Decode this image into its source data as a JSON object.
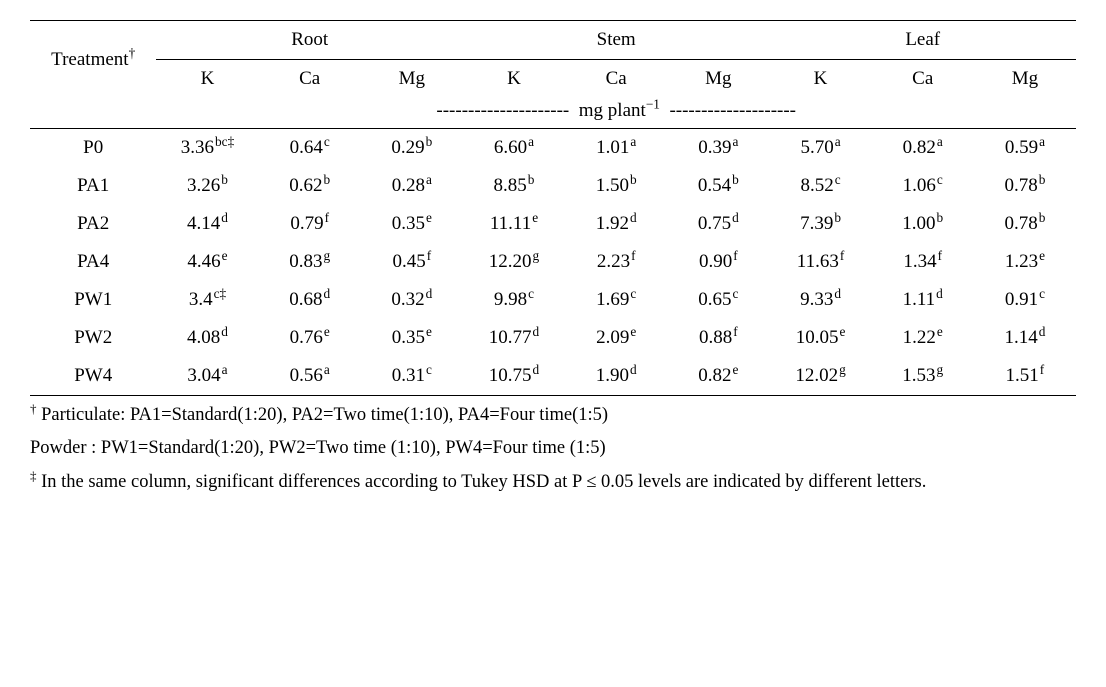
{
  "table": {
    "groups": [
      "Root",
      "Stem",
      "Leaf"
    ],
    "treatment_header": "Treatment",
    "treatment_dagger": "†",
    "subcols": [
      "K",
      "Ca",
      "Mg"
    ],
    "unit_prefix_dashes": "---------------------",
    "unit_label_before": "mg plant",
    "unit_sup": "−1",
    "unit_suffix_dashes": "--------------------",
    "rows": [
      {
        "treatment": "P0",
        "cells": [
          {
            "v": "3.36",
            "s": "bc‡"
          },
          {
            "v": "0.64",
            "s": "c"
          },
          {
            "v": "0.29",
            "s": "b"
          },
          {
            "v": "6.60",
            "s": "a"
          },
          {
            "v": "1.01",
            "s": "a"
          },
          {
            "v": "0.39",
            "s": "a"
          },
          {
            "v": "5.70",
            "s": "a"
          },
          {
            "v": "0.82",
            "s": "a"
          },
          {
            "v": "0.59",
            "s": "a"
          }
        ]
      },
      {
        "treatment": "PA1",
        "cells": [
          {
            "v": "3.26",
            "s": "b"
          },
          {
            "v": "0.62",
            "s": "b"
          },
          {
            "v": "0.28",
            "s": "a"
          },
          {
            "v": "8.85",
            "s": "b"
          },
          {
            "v": "1.50",
            "s": "b"
          },
          {
            "v": "0.54",
            "s": "b"
          },
          {
            "v": "8.52",
            "s": "c"
          },
          {
            "v": "1.06",
            "s": "c"
          },
          {
            "v": "0.78",
            "s": "b"
          }
        ]
      },
      {
        "treatment": "PA2",
        "cells": [
          {
            "v": "4.14",
            "s": "d"
          },
          {
            "v": "0.79",
            "s": "f"
          },
          {
            "v": "0.35",
            "s": "e"
          },
          {
            "v": "11.11",
            "s": "e"
          },
          {
            "v": "1.92",
            "s": "d"
          },
          {
            "v": "0.75",
            "s": "d"
          },
          {
            "v": "7.39",
            "s": "b"
          },
          {
            "v": "1.00",
            "s": "b"
          },
          {
            "v": "0.78",
            "s": "b"
          }
        ]
      },
      {
        "treatment": "PA4",
        "cells": [
          {
            "v": "4.46",
            "s": "e"
          },
          {
            "v": "0.83",
            "s": "g"
          },
          {
            "v": "0.45",
            "s": "f"
          },
          {
            "v": "12.20",
            "s": "g"
          },
          {
            "v": "2.23",
            "s": "f"
          },
          {
            "v": "0.90",
            "s": "f"
          },
          {
            "v": "11.63",
            "s": "f"
          },
          {
            "v": "1.34",
            "s": "f"
          },
          {
            "v": "1.23",
            "s": "e"
          }
        ]
      },
      {
        "treatment": "PW1",
        "cells": [
          {
            "v": "3.4",
            "s": "c‡"
          },
          {
            "v": "0.68",
            "s": "d"
          },
          {
            "v": "0.32",
            "s": "d"
          },
          {
            "v": "9.98",
            "s": "c"
          },
          {
            "v": "1.69",
            "s": "c"
          },
          {
            "v": "0.65",
            "s": "c"
          },
          {
            "v": "9.33",
            "s": "d"
          },
          {
            "v": "1.11",
            "s": "d"
          },
          {
            "v": "0.91",
            "s": "c"
          }
        ]
      },
      {
        "treatment": "PW2",
        "cells": [
          {
            "v": "4.08",
            "s": "d"
          },
          {
            "v": "0.76",
            "s": "e"
          },
          {
            "v": "0.35",
            "s": "e"
          },
          {
            "v": "10.77",
            "s": "d"
          },
          {
            "v": "2.09",
            "s": "e"
          },
          {
            "v": "0.88",
            "s": "f"
          },
          {
            "v": "10.05",
            "s": "e"
          },
          {
            "v": "1.22",
            "s": "e"
          },
          {
            "v": "1.14",
            "s": "d"
          }
        ]
      },
      {
        "treatment": "PW4",
        "cells": [
          {
            "v": "3.04",
            "s": "a"
          },
          {
            "v": "0.56",
            "s": "a"
          },
          {
            "v": "0.31",
            "s": "c"
          },
          {
            "v": "10.75",
            "s": "d"
          },
          {
            "v": "1.90",
            "s": "d"
          },
          {
            "v": "0.82",
            "s": "e"
          },
          {
            "v": "12.02",
            "s": "g"
          },
          {
            "v": "1.53",
            "s": "g"
          },
          {
            "v": "1.51",
            "s": "f"
          }
        ]
      }
    ]
  },
  "footnotes": {
    "line1_sup": "†",
    "line1": " Particulate: PA1=Standard(1:20), PA2=Two time(1:10), PA4=Four time(1:5)",
    "line2": "Powder :  PW1=Standard(1:20), PW2=Two time (1:10), PW4=Four time (1:5)",
    "line3_sup": "‡",
    "line3": " In the same column, significant differences according to Tukey HSD at P ≤ 0.05 levels are indicated by different letters."
  }
}
